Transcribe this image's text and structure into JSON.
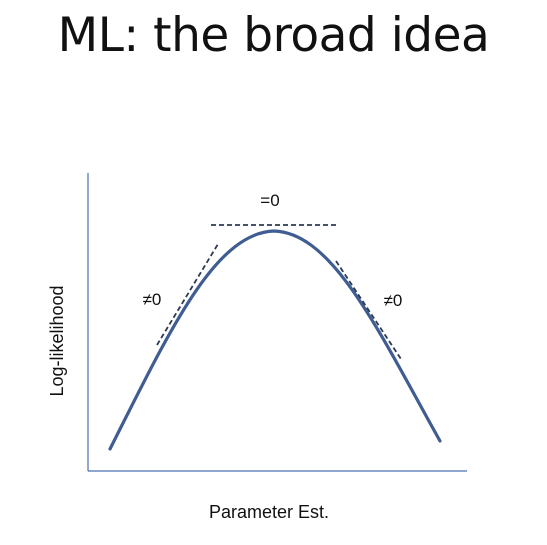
{
  "slide": {
    "title": "ML: the broad idea"
  },
  "diagram": {
    "ylabel": "Log-likelihood",
    "xlabel": "Parameter Est.",
    "annotations": {
      "top": "=0",
      "left": "≠0",
      "right": "≠0"
    }
  },
  "colors": {
    "curve": "#3f5d92",
    "axis": "#4a6fb0",
    "tangent": "#2c3a52",
    "text": "#111111"
  }
}
